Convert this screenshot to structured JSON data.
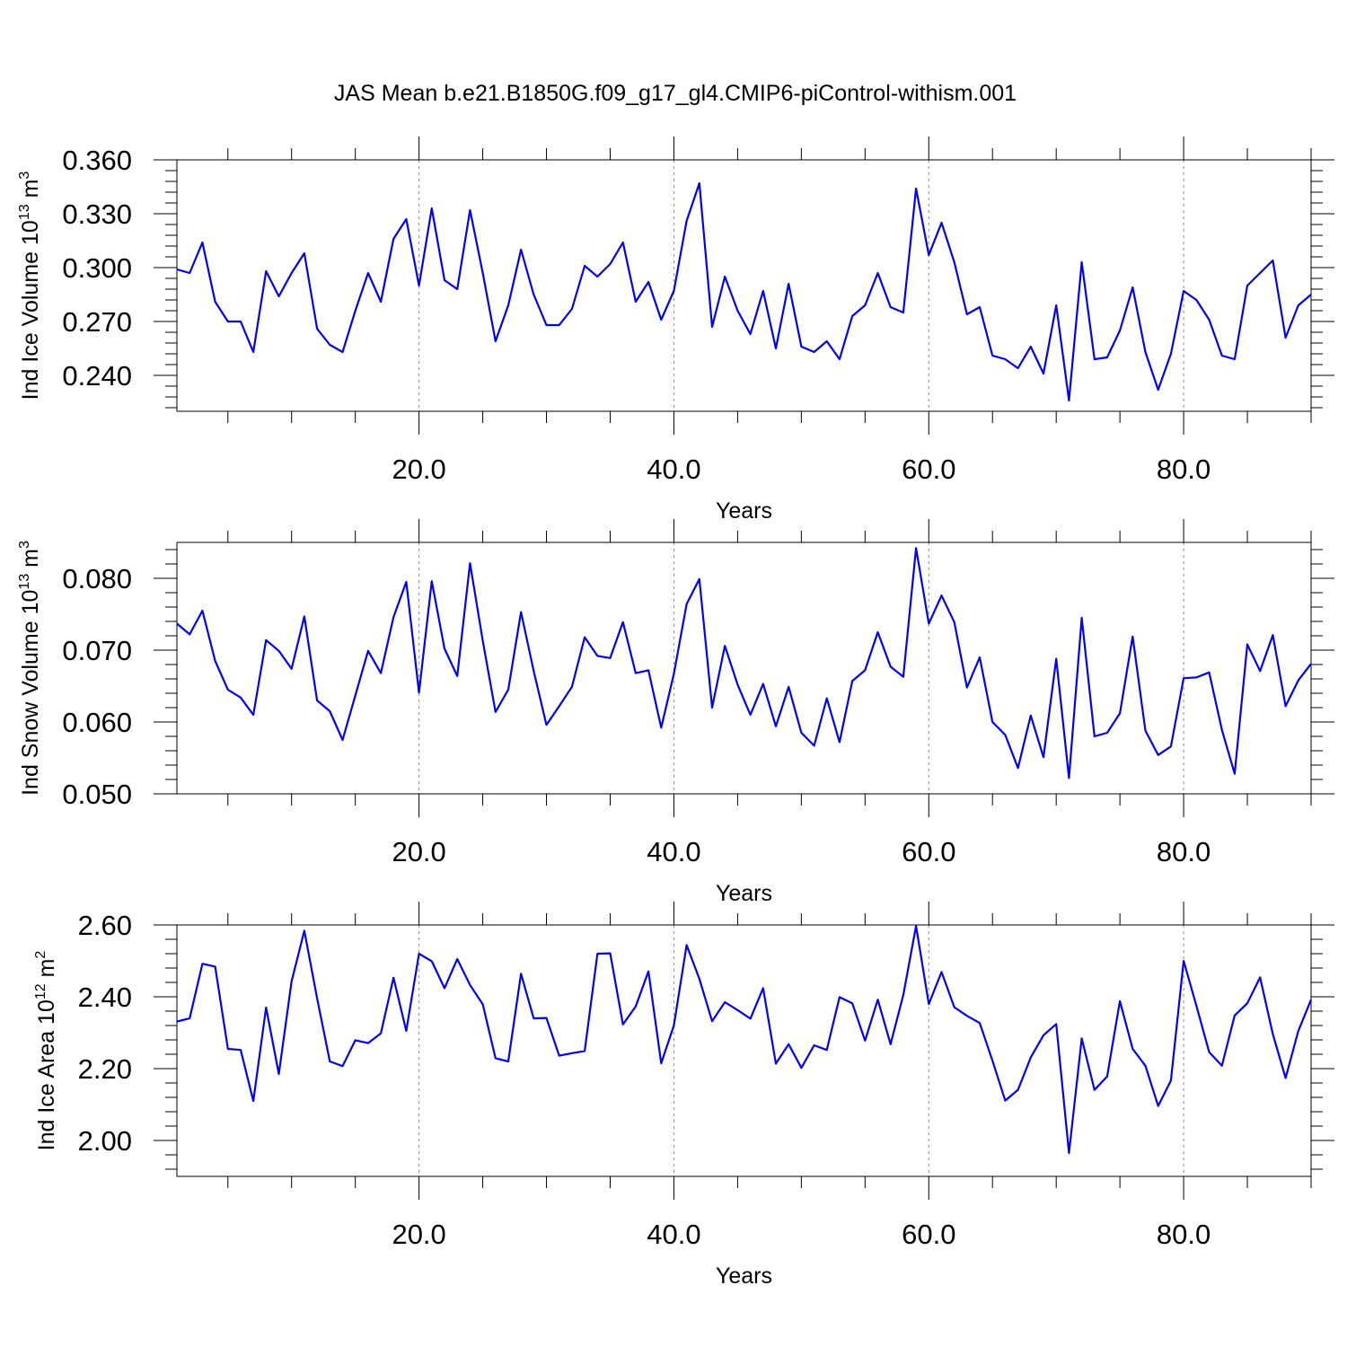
{
  "title": "JAS Mean b.e21.B1850G.f09_g17_gl4.CMIP6-piControl-withism.001",
  "colors": {
    "series": "#0000ff",
    "frame": "#000000",
    "grid": "#8a8a8a"
  },
  "chart_data": [
    {
      "type": "line",
      "title": "",
      "xlabel": "Years",
      "ylabel": {
        "text": "Ind Ice Volume 10",
        "exp": "13",
        "unit": "m",
        "unit_exp": "3"
      },
      "xlim": [
        1,
        90
      ],
      "ylim": [
        0.22,
        0.36
      ],
      "xticks": [
        20,
        40,
        60,
        80
      ],
      "xtick_labels": [
        "20.0",
        "40.0",
        "60.0",
        "80.0"
      ],
      "yticks": [
        0.24,
        0.27,
        0.3,
        0.33,
        0.36
      ],
      "ytick_labels": [
        "0.240",
        "0.270",
        "0.300",
        "0.330",
        "0.360"
      ],
      "grid": "vertical dashed",
      "series": [
        {
          "values": [
            0.299,
            0.297,
            0.314,
            0.281,
            0.27,
            0.27,
            0.253,
            0.298,
            0.284,
            0.297,
            0.308,
            0.266,
            0.257,
            0.253,
            0.276,
            0.297,
            0.281,
            0.316,
            0.327,
            0.29,
            0.333,
            0.293,
            0.288,
            0.332,
            0.297,
            0.259,
            0.279,
            0.31,
            0.285,
            0.268,
            0.268,
            0.277,
            0.301,
            0.295,
            0.302,
            0.314,
            0.281,
            0.292,
            0.271,
            0.287,
            0.326,
            0.347,
            0.267,
            0.295,
            0.276,
            0.263,
            0.287,
            0.255,
            0.291,
            0.256,
            0.253,
            0.259,
            0.249,
            0.273,
            0.279,
            0.297,
            0.278,
            0.275,
            0.344,
            0.307,
            0.325,
            0.303,
            0.274,
            0.278,
            0.251,
            0.249,
            0.244,
            0.256,
            0.241,
            0.279,
            0.226,
            0.303,
            0.249,
            0.25,
            0.265,
            0.289,
            0.253,
            0.232,
            0.252,
            0.287,
            0.282,
            0.271,
            0.251,
            0.249,
            0.29,
            0.297,
            0.304,
            0.261,
            0.279,
            0.285
          ]
        }
      ]
    },
    {
      "type": "line",
      "title": "",
      "xlabel": "Years",
      "ylabel": {
        "text": "Ind Snow Volume 10",
        "exp": "13",
        "unit": "m",
        "unit_exp": "3"
      },
      "xlim": [
        1,
        90
      ],
      "ylim": [
        0.05,
        0.085
      ],
      "xticks": [
        20,
        40,
        60,
        80
      ],
      "xtick_labels": [
        "20.0",
        "40.0",
        "60.0",
        "80.0"
      ],
      "yticks": [
        0.05,
        0.06,
        0.07,
        0.08
      ],
      "ytick_labels": [
        "0.050",
        "0.060",
        "0.070",
        "0.080"
      ],
      "grid": "vertical dashed",
      "series": [
        {
          "values": [
            0.0737,
            0.0722,
            0.0755,
            0.0685,
            0.0645,
            0.0634,
            0.061,
            0.0714,
            0.0699,
            0.0674,
            0.0747,
            0.063,
            0.0615,
            0.0575,
            0.0637,
            0.0699,
            0.0668,
            0.0746,
            0.0795,
            0.0641,
            0.0796,
            0.0702,
            0.0664,
            0.0821,
            0.0713,
            0.0614,
            0.0645,
            0.0753,
            0.0671,
            0.0596,
            0.0622,
            0.0649,
            0.0718,
            0.0692,
            0.0689,
            0.0739,
            0.0668,
            0.0672,
            0.0592,
            0.0667,
            0.0764,
            0.0799,
            0.062,
            0.0706,
            0.0652,
            0.061,
            0.0653,
            0.0594,
            0.0649,
            0.0585,
            0.0567,
            0.0633,
            0.0572,
            0.0657,
            0.0672,
            0.0725,
            0.0677,
            0.0663,
            0.0842,
            0.0737,
            0.0776,
            0.0739,
            0.0648,
            0.069,
            0.06,
            0.0582,
            0.0536,
            0.0609,
            0.0551,
            0.0688,
            0.0522,
            0.0745,
            0.058,
            0.0585,
            0.0612,
            0.0719,
            0.0588,
            0.0554,
            0.0566,
            0.0661,
            0.0662,
            0.0669,
            0.0589,
            0.0528,
            0.0708,
            0.0671,
            0.0721,
            0.0622,
            0.0658,
            0.0681
          ]
        }
      ]
    },
    {
      "type": "line",
      "title": "",
      "xlabel": "Years",
      "ylabel": {
        "text": "Ind Ice Area 10",
        "exp": "12",
        "unit": "m",
        "unit_exp": "2"
      },
      "xlim": [
        1,
        90
      ],
      "ylim": [
        1.9,
        2.6
      ],
      "xticks": [
        20,
        40,
        60,
        80
      ],
      "xtick_labels": [
        "20.0",
        "40.0",
        "60.0",
        "80.0"
      ],
      "yticks": [
        2.0,
        2.2,
        2.4,
        2.6
      ],
      "ytick_labels": [
        "2.00",
        "2.20",
        "2.40",
        "2.60"
      ],
      "grid": "vertical dashed",
      "series": [
        {
          "values": [
            2.331,
            2.34,
            2.492,
            2.484,
            2.255,
            2.252,
            2.11,
            2.37,
            2.185,
            2.443,
            2.584,
            2.396,
            2.22,
            2.207,
            2.279,
            2.271,
            2.298,
            2.453,
            2.305,
            2.52,
            2.499,
            2.424,
            2.505,
            2.433,
            2.379,
            2.229,
            2.22,
            2.464,
            2.34,
            2.341,
            2.236,
            2.243,
            2.249,
            2.52,
            2.521,
            2.323,
            2.373,
            2.471,
            2.215,
            2.32,
            2.544,
            2.45,
            2.332,
            2.385,
            2.363,
            2.339,
            2.424,
            2.214,
            2.268,
            2.202,
            2.265,
            2.252,
            2.399,
            2.382,
            2.278,
            2.392,
            2.268,
            2.405,
            2.597,
            2.38,
            2.469,
            2.371,
            2.347,
            2.327,
            2.222,
            2.111,
            2.141,
            2.231,
            2.293,
            2.324,
            1.965,
            2.284,
            2.141,
            2.178,
            2.388,
            2.255,
            2.208,
            2.096,
            2.167,
            2.5,
            2.375,
            2.246,
            2.208,
            2.348,
            2.382,
            2.454,
            2.296,
            2.174,
            2.305,
            2.392
          ]
        }
      ]
    }
  ]
}
